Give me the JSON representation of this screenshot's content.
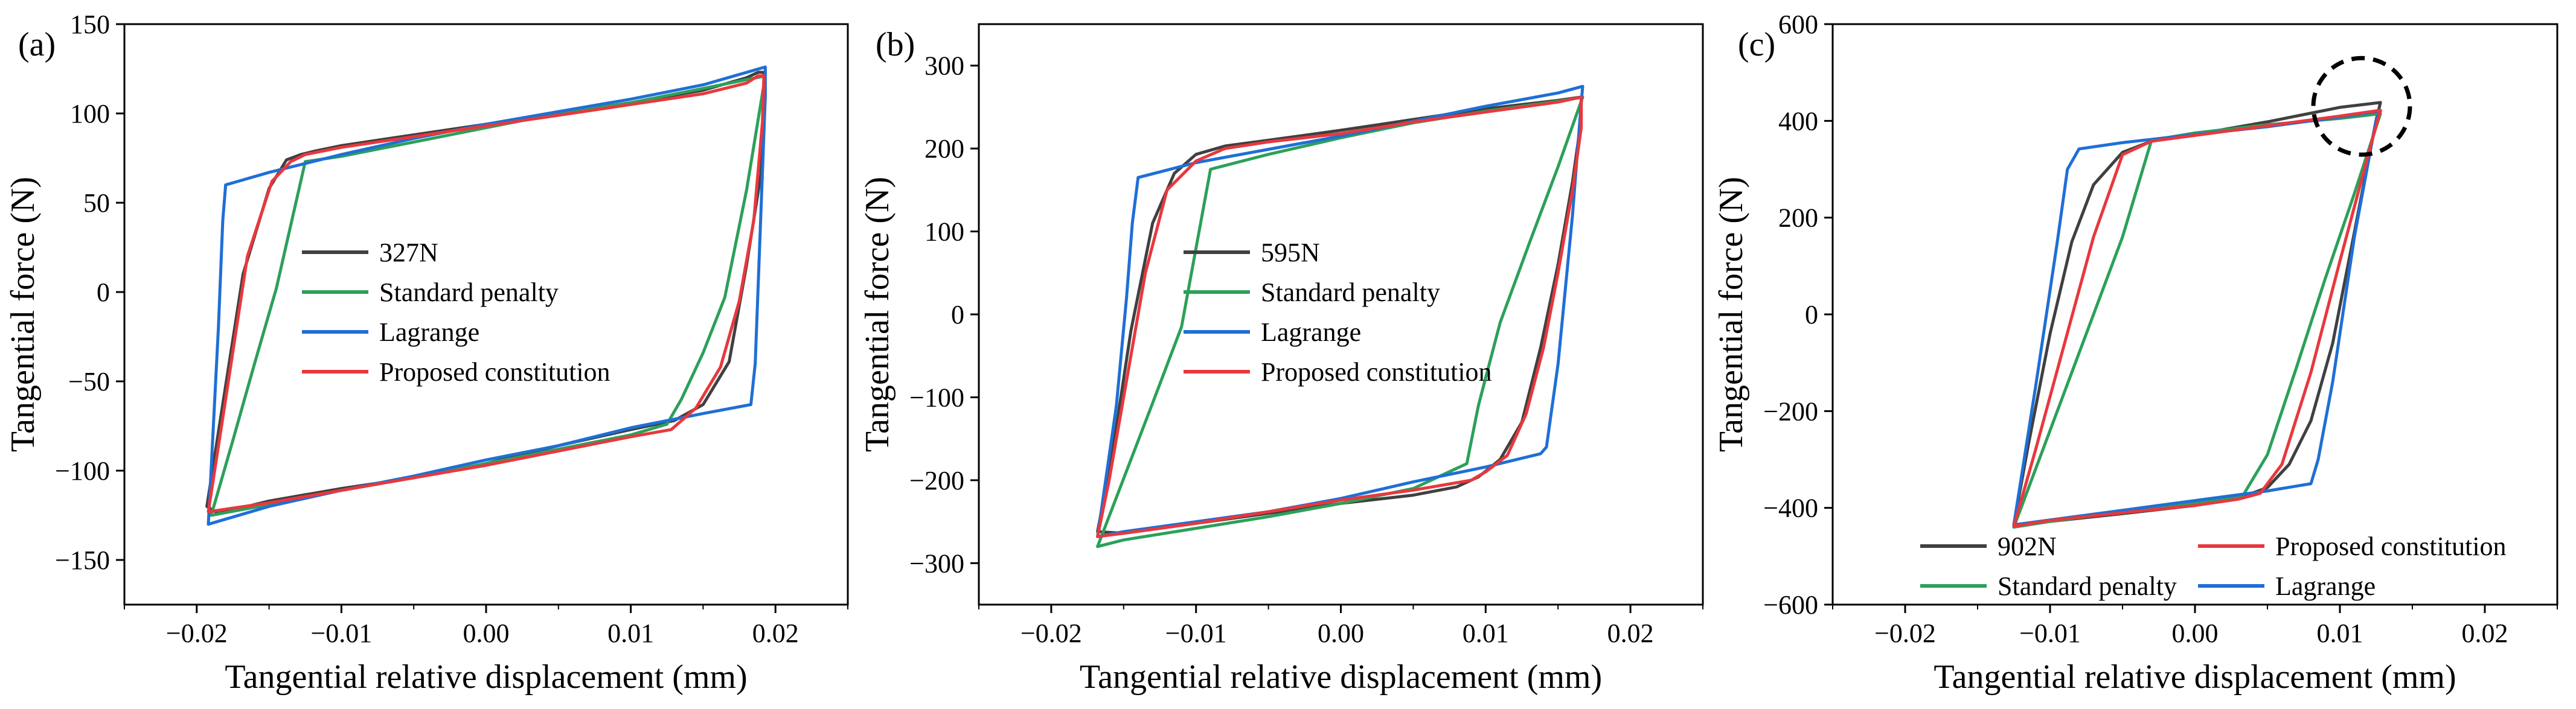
{
  "colors": {
    "measured": "#404040",
    "standard_penalty": "#2ca05a",
    "lagrange": "#1f6fd6",
    "proposed": "#e8383d",
    "annotation": "#000000"
  },
  "chart_data": [
    {
      "type": "line",
      "panel": "(a)",
      "xlabel": "Tangential relative displacement (mm)",
      "ylabel": "Tangential force (N)",
      "xlim": [
        -0.025,
        0.025
      ],
      "ylim": [
        -175,
        150
      ],
      "xticks": [
        -0.02,
        -0.01,
        0.0,
        0.01,
        0.02
      ],
      "xtick_labels": [
        "−0.02",
        "−0.01",
        "0.00",
        "0.01",
        "0.02"
      ],
      "yticks": [
        -150,
        -100,
        -50,
        0,
        50,
        100,
        150
      ],
      "ytick_labels": [
        "−150",
        "−100",
        "−50",
        "0",
        "50",
        "100",
        "150"
      ],
      "legend": {
        "layout": "column",
        "position": "center"
      },
      "series": [
        {
          "name": "327N",
          "key": "measured",
          "x": [
            -0.0193,
            -0.0183,
            -0.0168,
            -0.015,
            -0.0138,
            -0.0128,
            -0.0118,
            -0.01,
            -0.005,
            0.0,
            0.005,
            0.01,
            0.015,
            0.018,
            0.0188,
            0.0192,
            0.0193,
            0.019,
            0.018,
            0.0168,
            0.015,
            0.013,
            0.01,
            0.005,
            0.0,
            -0.005,
            -0.01,
            -0.015,
            -0.0185,
            -0.0193
          ],
          "y": [
            -120,
            -68,
            10,
            58,
            74,
            77,
            79,
            82,
            88,
            94,
            100,
            106,
            113,
            120,
            123,
            123,
            110,
            66,
            15,
            -39,
            -63,
            -72,
            -77,
            -86,
            -96,
            -104,
            -110,
            -117,
            -124,
            -120
          ]
        },
        {
          "name": "Standard penalty",
          "key": "standard_penalty",
          "x": [
            -0.019,
            -0.0175,
            -0.016,
            -0.0145,
            -0.0125,
            -0.01,
            -0.005,
            0.0,
            0.005,
            0.01,
            0.015,
            0.0193,
            0.018,
            0.0165,
            0.015,
            0.0135,
            0.0125,
            0.01,
            0.005,
            0.0,
            -0.005,
            -0.01,
            -0.015,
            -0.019
          ],
          "y": [
            -125,
            -83,
            -40,
            2,
            73,
            76,
            84,
            92,
            100,
            106,
            114,
            121,
            57,
            -3,
            -34,
            -60,
            -74,
            -80,
            -88,
            -96,
            -104,
            -111,
            -119,
            -125
          ]
        },
        {
          "name": "Lagrange",
          "key": "lagrange",
          "x": [
            -0.0192,
            -0.0185,
            -0.0182,
            -0.018,
            -0.015,
            -0.01,
            -0.005,
            0.0,
            0.005,
            0.01,
            0.015,
            0.0193,
            0.0193,
            0.0186,
            0.0183,
            0.015,
            0.01,
            0.005,
            0.0,
            -0.005,
            -0.01,
            -0.015,
            -0.0192
          ],
          "y": [
            -130,
            -20,
            40,
            60,
            67,
            77,
            86,
            94,
            101,
            108,
            116,
            126,
            110,
            -40,
            -63,
            -68,
            -76,
            -86,
            -94,
            -103,
            -111,
            -120,
            -130
          ]
        },
        {
          "name": "Proposed constitution",
          "key": "proposed",
          "x": [
            -0.0192,
            -0.018,
            -0.0165,
            -0.0148,
            -0.0135,
            -0.0125,
            -0.01,
            -0.005,
            0.0,
            0.005,
            0.01,
            0.015,
            0.018,
            0.0188,
            0.0192,
            0.0191,
            0.0185,
            0.0175,
            0.0162,
            0.0145,
            0.0128,
            0.01,
            0.005,
            0.0,
            -0.005,
            -0.01,
            -0.015,
            -0.0192
          ],
          "y": [
            -123,
            -60,
            20,
            62,
            73,
            77,
            81,
            87,
            93,
            99,
            105,
            111,
            117,
            121,
            121,
            95,
            40,
            -5,
            -42,
            -65,
            -77,
            -81,
            -89,
            -97,
            -104,
            -111,
            -118,
            -123
          ]
        }
      ]
    },
    {
      "type": "line",
      "panel": "(b)",
      "xlabel": "Tangential relative displacement (mm)",
      "ylabel": "Tangential force (N)",
      "xlim": [
        -0.025,
        0.025
      ],
      "ylim": [
        -350,
        350
      ],
      "xticks": [
        -0.02,
        -0.01,
        0.0,
        0.01,
        0.02
      ],
      "xtick_labels": [
        "−0.02",
        "−0.01",
        "0.00",
        "0.01",
        "0.02"
      ],
      "yticks": [
        -300,
        -200,
        -100,
        0,
        100,
        200,
        300
      ],
      "ytick_labels": [
        "−300",
        "−200",
        "−100",
        "0",
        "100",
        "200",
        "300"
      ],
      "legend": {
        "layout": "column",
        "position": "center"
      },
      "series": [
        {
          "name": "595N",
          "key": "measured",
          "x": [
            -0.0168,
            -0.0158,
            -0.0145,
            -0.013,
            -0.0115,
            -0.01,
            -0.008,
            -0.005,
            0.0,
            0.005,
            0.01,
            0.015,
            0.0166,
            0.0166,
            0.016,
            0.015,
            0.0138,
            0.0125,
            0.011,
            0.0095,
            0.008,
            0.005,
            0.0,
            -0.005,
            -0.01,
            -0.015,
            -0.0168
          ],
          "y": [
            -262,
            -170,
            -20,
            110,
            170,
            193,
            203,
            210,
            222,
            235,
            248,
            258,
            262,
            235,
            160,
            60,
            -40,
            -130,
            -175,
            -196,
            -208,
            -218,
            -228,
            -240,
            -252,
            -264,
            -262
          ]
        },
        {
          "name": "Standard penalty",
          "key": "standard_penalty",
          "x": [
            -0.0168,
            -0.015,
            -0.013,
            -0.011,
            -0.009,
            -0.005,
            0.0,
            0.005,
            0.01,
            0.015,
            0.0167,
            0.015,
            0.013,
            0.011,
            0.0095,
            0.0087,
            0.005,
            0.0,
            -0.005,
            -0.01,
            -0.015,
            -0.0168
          ],
          "y": [
            -280,
            -198,
            -107,
            -15,
            175,
            193,
            213,
            231,
            245,
            257,
            262,
            178,
            85,
            -10,
            -110,
            -180,
            -210,
            -228,
            -244,
            -258,
            -272,
            -280
          ]
        },
        {
          "name": "Lagrange",
          "key": "lagrange",
          "x": [
            -0.0168,
            -0.0155,
            -0.0148,
            -0.0144,
            -0.014,
            -0.01,
            -0.005,
            0.0,
            0.005,
            0.01,
            0.015,
            0.0167,
            0.0166,
            0.016,
            0.015,
            0.0142,
            0.0138,
            0.01,
            0.005,
            0.0,
            -0.005,
            -0.01,
            -0.015,
            -0.0168
          ],
          "y": [
            -268,
            -110,
            20,
            110,
            165,
            183,
            199,
            215,
            233,
            251,
            267,
            275,
            255,
            120,
            -60,
            -160,
            -168,
            -184,
            -202,
            -222,
            -238,
            -250,
            -262,
            -268
          ]
        },
        {
          "name": "Proposed constitution",
          "key": "proposed",
          "x": [
            -0.0168,
            -0.016,
            -0.015,
            -0.0135,
            -0.012,
            -0.01,
            -0.008,
            -0.005,
            0.0,
            0.005,
            0.01,
            0.015,
            0.0166,
            0.0166,
            0.016,
            0.015,
            0.014,
            0.0128,
            0.0115,
            0.01,
            0.009,
            0.005,
            0.0,
            -0.005,
            -0.01,
            -0.015,
            -0.0168
          ],
          "y": [
            -268,
            -200,
            -100,
            50,
            150,
            185,
            200,
            208,
            218,
            232,
            244,
            256,
            262,
            225,
            150,
            50,
            -40,
            -120,
            -170,
            -190,
            -200,
            -212,
            -224,
            -238,
            -252,
            -264,
            -268
          ]
        }
      ]
    },
    {
      "type": "line",
      "panel": "(c)",
      "xlabel": "Tangential relative displacement (mm)",
      "ylabel": "Tangential force (N)",
      "xlim": [
        -0.025,
        0.025
      ],
      "ylim": [
        -600,
        600
      ],
      "xticks": [
        -0.02,
        -0.01,
        0.0,
        0.01,
        0.02
      ],
      "xtick_labels": [
        "−0.02",
        "−0.01",
        "0.00",
        "0.01",
        "0.02"
      ],
      "yticks": [
        -600,
        -400,
        -200,
        0,
        200,
        400,
        600
      ],
      "ytick_labels": [
        "−600",
        "−400",
        "−200",
        "0",
        "200",
        "400",
        "600"
      ],
      "legend": {
        "layout": "two-column",
        "position": "bottom"
      },
      "annotation": {
        "shape": "dashed-circle",
        "center_x": 0.0115,
        "center_y": 430,
        "note": "circled region at upper-right corner"
      },
      "series": [
        {
          "name": "902N",
          "key": "measured",
          "x": [
            -0.0125,
            -0.0115,
            -0.01,
            -0.0085,
            -0.007,
            -0.005,
            -0.003,
            0.0,
            0.005,
            0.01,
            0.0128,
            0.0125,
            0.011,
            0.0095,
            0.008,
            0.0065,
            0.005,
            0.003,
            0.0,
            -0.005,
            -0.01,
            -0.0125
          ],
          "y": [
            -435,
            -270,
            -40,
            150,
            268,
            335,
            358,
            372,
            398,
            428,
            438,
            402,
            170,
            -60,
            -220,
            -310,
            -358,
            -380,
            -395,
            -412,
            -428,
            -435
          ]
        },
        {
          "name": "Standard penalty",
          "key": "standard_penalty",
          "x": [
            -0.0125,
            -0.01,
            -0.0075,
            -0.005,
            -0.003,
            0.0,
            0.005,
            0.01,
            0.0128,
            0.011,
            0.009,
            0.007,
            0.005,
            0.0033,
            0.0,
            -0.005,
            -0.01,
            -0.0125
          ],
          "y": [
            -440,
            -240,
            -40,
            160,
            360,
            375,
            392,
            405,
            415,
            250,
            75,
            -110,
            -290,
            -375,
            -390,
            -408,
            -428,
            -440
          ]
        },
        {
          "name": "Lagrange",
          "key": "lagrange",
          "x": [
            -0.0125,
            -0.011,
            -0.0095,
            -0.0088,
            -0.008,
            -0.005,
            0.0,
            0.005,
            0.01,
            0.0128,
            0.0125,
            0.011,
            0.0095,
            0.0085,
            0.008,
            0.005,
            0.0,
            -0.005,
            -0.01,
            -0.0125
          ],
          "y": [
            -435,
            -150,
            150,
            300,
            342,
            355,
            372,
            388,
            408,
            420,
            402,
            160,
            -140,
            -300,
            -350,
            -365,
            -385,
            -405,
            -425,
            -435
          ]
        },
        {
          "name": "Proposed constitution",
          "key": "proposed",
          "x": [
            -0.0125,
            -0.011,
            -0.009,
            -0.007,
            -0.005,
            -0.003,
            0.0,
            0.005,
            0.01,
            0.0128,
            0.012,
            0.01,
            0.008,
            0.006,
            0.0045,
            0.003,
            0.0,
            -0.005,
            -0.01,
            -0.0125
          ],
          "y": [
            -438,
            -280,
            -60,
            160,
            330,
            358,
            370,
            390,
            410,
            422,
            335,
            110,
            -120,
            -310,
            -370,
            -382,
            -395,
            -410,
            -426,
            -438
          ]
        }
      ]
    }
  ]
}
